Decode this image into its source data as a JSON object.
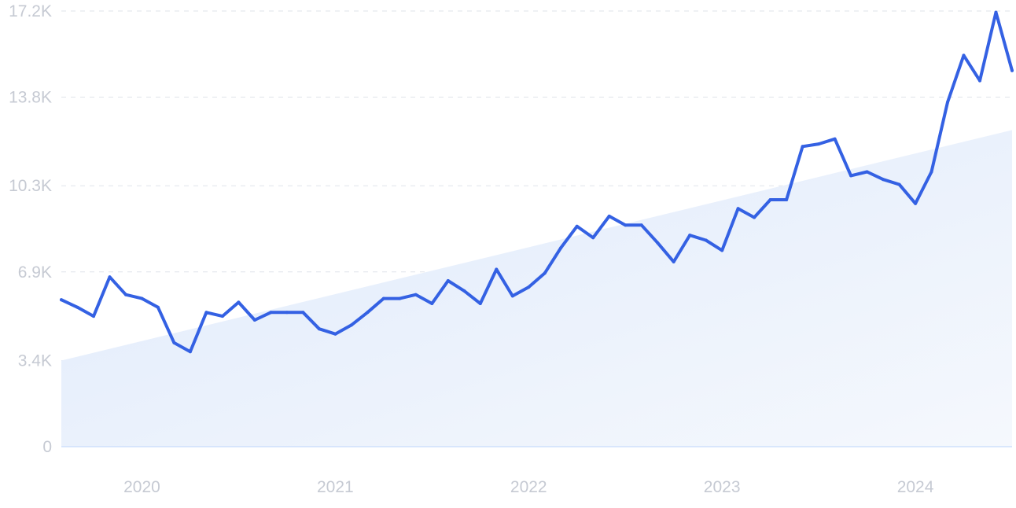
{
  "chart_data": {
    "type": "line",
    "title": "",
    "xlabel": "",
    "ylabel": "",
    "y_ticks": [
      {
        "value": 0,
        "label": "0"
      },
      {
        "value": 3400,
        "label": "3.4K"
      },
      {
        "value": 6900,
        "label": "6.9K"
      },
      {
        "value": 10300,
        "label": "10.3K"
      },
      {
        "value": 13800,
        "label": "13.8K"
      },
      {
        "value": 17200,
        "label": "17.2K"
      }
    ],
    "x_ticks": [
      {
        "value": "2020-01",
        "label": "2020"
      },
      {
        "value": "2021-01",
        "label": "2021"
      },
      {
        "value": "2022-01",
        "label": "2022"
      },
      {
        "value": "2023-01",
        "label": "2023"
      },
      {
        "value": "2024-01",
        "label": "2024"
      }
    ],
    "xlim": [
      "2019-08",
      "2024-07"
    ],
    "ylim": [
      0,
      17200
    ],
    "grid": true,
    "colors": {
      "line": "#3461e3",
      "trend_fill_start": "#dfeafb",
      "trend_fill_end": "#f5f8fd"
    },
    "trend": {
      "x": [
        "2019-08",
        "2024-07"
      ],
      "y": [
        3400,
        12500
      ]
    },
    "series": [
      {
        "x": [
          "2019-08",
          "2019-09",
          "2019-10",
          "2019-11",
          "2019-12",
          "2020-01",
          "2020-02",
          "2020-03",
          "2020-04",
          "2020-05",
          "2020-06",
          "2020-07",
          "2020-08",
          "2020-09",
          "2020-10",
          "2020-11",
          "2020-12",
          "2021-01",
          "2021-02",
          "2021-03",
          "2021-04",
          "2021-05",
          "2021-06",
          "2021-07",
          "2021-08",
          "2021-09",
          "2021-10",
          "2021-11",
          "2021-12",
          "2022-01",
          "2022-02",
          "2022-03",
          "2022-04",
          "2022-05",
          "2022-06",
          "2022-07",
          "2022-08",
          "2022-09",
          "2022-10",
          "2022-11",
          "2022-12",
          "2023-01",
          "2023-02",
          "2023-03",
          "2023-04",
          "2023-05",
          "2023-06",
          "2023-07",
          "2023-08",
          "2023-09",
          "2023-10",
          "2023-11",
          "2023-12",
          "2024-01",
          "2024-02",
          "2024-03",
          "2024-04",
          "2024-05",
          "2024-06",
          "2024-07"
        ],
        "values": [
          5800,
          5500,
          5150,
          6700,
          6000,
          5850,
          5500,
          4100,
          3750,
          5300,
          5150,
          5700,
          5000,
          5300,
          5300,
          5300,
          4650,
          4450,
          4800,
          5300,
          5850,
          5850,
          6000,
          5650,
          6550,
          6150,
          5650,
          7000,
          5950,
          6300,
          6850,
          7850,
          8700,
          8250,
          9100,
          8750,
          8750,
          8050,
          7300,
          8350,
          8150,
          7750,
          9400,
          9050,
          9750,
          9750,
          11850,
          11950,
          12150,
          10700,
          10850,
          10550,
          10350,
          9600,
          10850,
          13600,
          15450,
          14450,
          17150,
          14850
        ]
      }
    ]
  }
}
